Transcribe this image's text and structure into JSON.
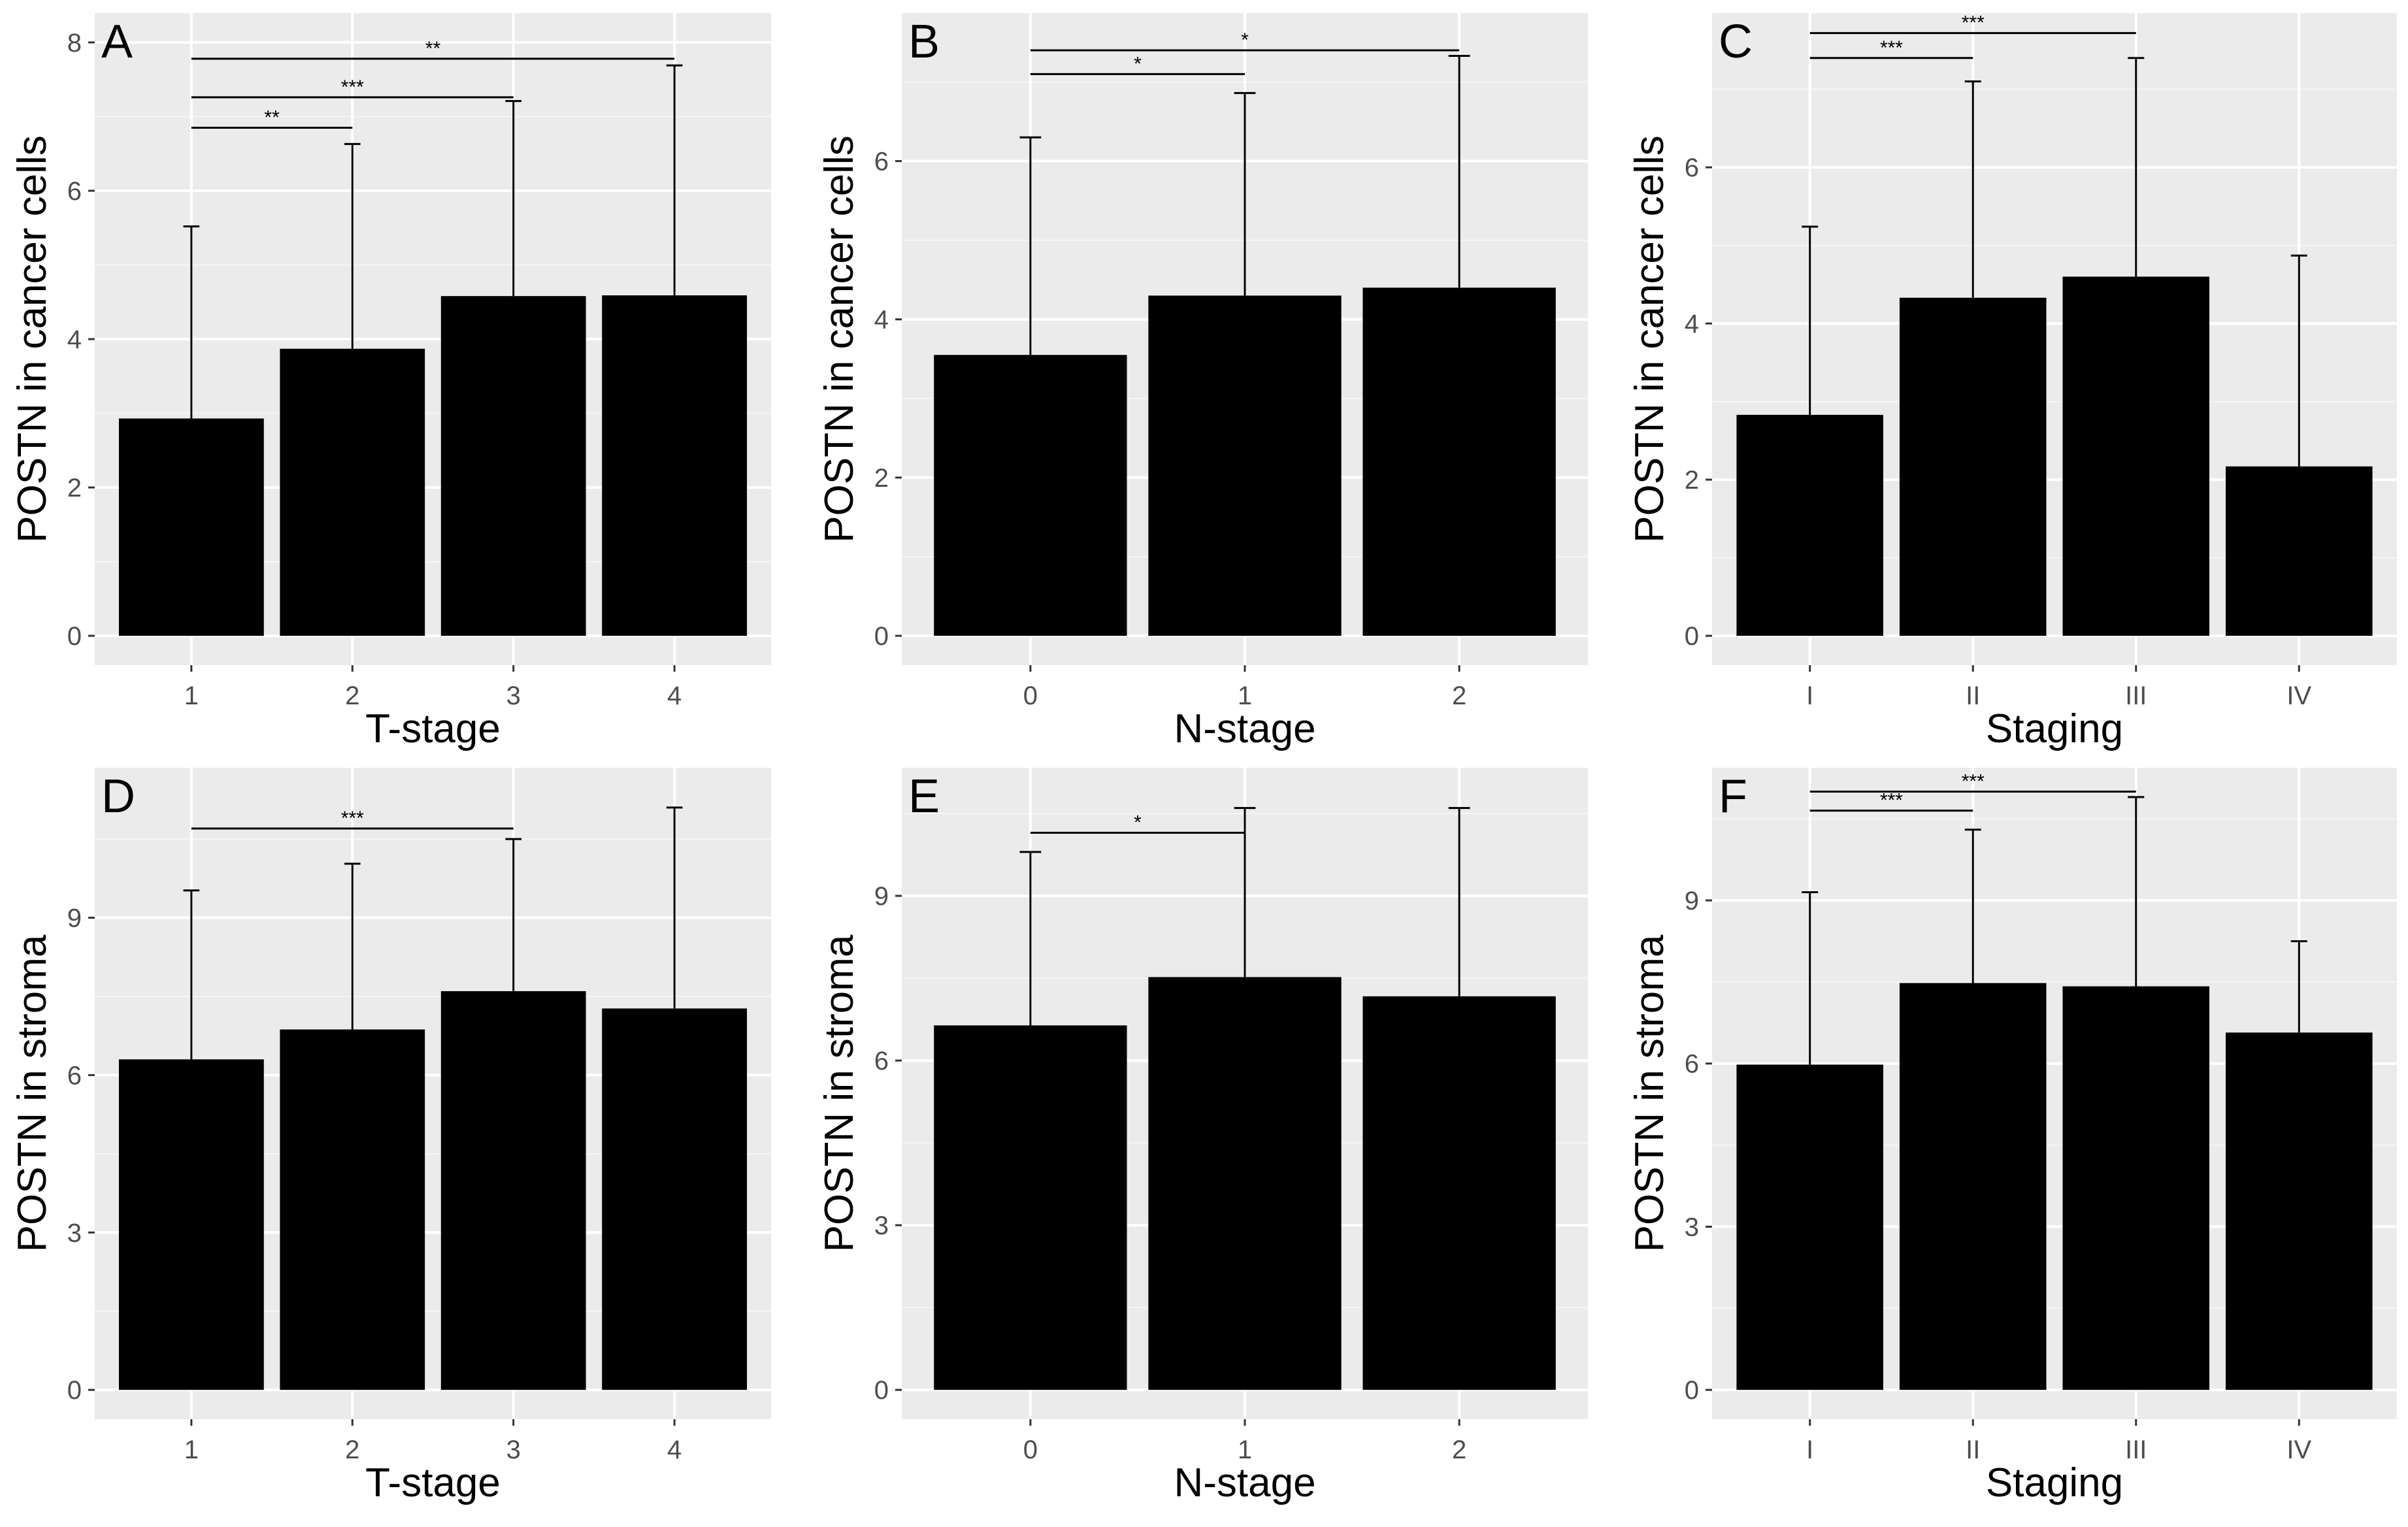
{
  "chart_data": [
    {
      "panel_label": "A",
      "type": "bar",
      "xlabel": "T-stage",
      "ylabel": "POSTN in cancer cells",
      "categories": [
        "1",
        "2",
        "3",
        "4"
      ],
      "values": [
        2.93,
        3.87,
        4.58,
        4.59
      ],
      "error_upper": [
        5.52,
        6.63,
        7.21,
        7.69
      ],
      "ylim": [
        0,
        8
      ],
      "yticks": [
        0,
        2,
        4,
        6,
        8
      ],
      "grid": true,
      "significance": [
        {
          "from": "1",
          "to": "2",
          "label": "**",
          "y": 6.85
        },
        {
          "from": "1",
          "to": "3",
          "label": "***",
          "y": 7.26
        },
        {
          "from": "1",
          "to": "4",
          "label": "**",
          "y": 7.78
        }
      ]
    },
    {
      "panel_label": "B",
      "type": "bar",
      "xlabel": "N-stage",
      "ylabel": "POSTN in cancer cells",
      "categories": [
        "0",
        "1",
        "2"
      ],
      "values": [
        3.55,
        4.3,
        4.4
      ],
      "error_upper": [
        6.3,
        6.86,
        7.33
      ],
      "ylim": [
        0,
        7.5
      ],
      "yticks": [
        0,
        2,
        4,
        6
      ],
      "grid": true,
      "significance": [
        {
          "from": "0",
          "to": "1",
          "label": "*",
          "y": 7.1
        },
        {
          "from": "0",
          "to": "2",
          "label": "*",
          "y": 7.4
        }
      ]
    },
    {
      "panel_label": "C",
      "type": "bar",
      "xlabel": "Staging",
      "ylabel": "POSTN in cancer cells",
      "categories": [
        "I",
        "II",
        "III",
        "IV"
      ],
      "values": [
        2.83,
        4.33,
        4.6,
        2.17
      ],
      "error_upper": [
        5.24,
        7.1,
        7.4,
        4.87
      ],
      "ylim": [
        0,
        7.6
      ],
      "yticks": [
        0,
        2,
        4,
        6
      ],
      "grid": true,
      "significance": [
        {
          "from": "I",
          "to": "II",
          "label": "***",
          "y": 7.4
        },
        {
          "from": "I",
          "to": "III",
          "label": "***",
          "y": 7.72
        }
      ]
    },
    {
      "panel_label": "D",
      "type": "bar",
      "xlabel": "T-stage",
      "ylabel": "POSTN in stroma",
      "categories": [
        "1",
        "2",
        "3",
        "4"
      ],
      "values": [
        6.3,
        6.87,
        7.6,
        7.27
      ],
      "error_upper": [
        9.52,
        10.03,
        10.5,
        11.1
      ],
      "ylim": [
        0,
        11.3
      ],
      "yticks": [
        0,
        3,
        6,
        9
      ],
      "grid": true,
      "significance": [
        {
          "from": "1",
          "to": "3",
          "label": "***",
          "y": 10.7
        }
      ]
    },
    {
      "panel_label": "E",
      "type": "bar",
      "xlabel": "N-stage",
      "ylabel": "POSTN in stroma",
      "categories": [
        "0",
        "1",
        "2"
      ],
      "values": [
        6.64,
        7.52,
        7.17
      ],
      "error_upper": [
        9.8,
        10.6,
        10.6
      ],
      "ylim": [
        0,
        10.8
      ],
      "yticks": [
        0,
        3,
        6,
        9
      ],
      "grid": true,
      "significance": [
        {
          "from": "0",
          "to": "1",
          "label": "*",
          "y": 10.15
        }
      ]
    },
    {
      "panel_label": "F",
      "type": "bar",
      "xlabel": "Staging",
      "ylabel": "POSTN in stroma",
      "categories": [
        "I",
        "II",
        "III",
        "IV"
      ],
      "values": [
        5.98,
        7.48,
        7.42,
        6.57
      ],
      "error_upper": [
        9.15,
        10.3,
        10.9,
        8.25
      ],
      "ylim": [
        0,
        10.9
      ],
      "yticks": [
        0,
        3,
        6,
        9
      ],
      "grid": true,
      "significance": [
        {
          "from": "I",
          "to": "II",
          "label": "***",
          "y": 10.65
        },
        {
          "from": "I",
          "to": "III",
          "label": "***",
          "y": 11.0
        }
      ]
    }
  ]
}
